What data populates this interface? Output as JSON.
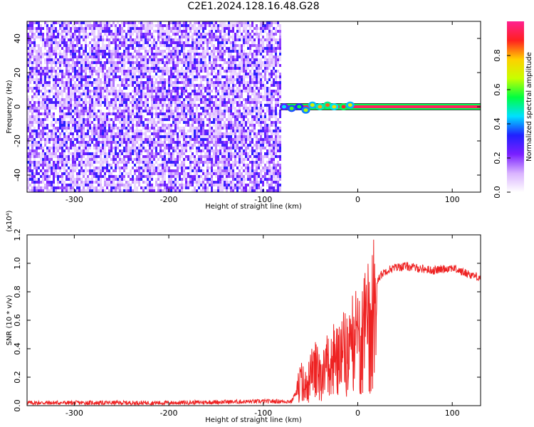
{
  "title": "C2E1.2024.128.16.48.G28",
  "chart_data": [
    {
      "type": "heatmap",
      "title": "",
      "xlabel": "Height of straight line (km)",
      "ylabel": "Frequency (Hz)",
      "xlim": [
        -350,
        130
      ],
      "ylim": [
        -50,
        50
      ],
      "x_ticks": [
        -300,
        -200,
        -100,
        0,
        100
      ],
      "x_tick_labels": [
        "-300",
        "-200",
        "-100",
        "0",
        "100"
      ],
      "y_ticks": [
        -40,
        -20,
        0,
        20,
        40
      ],
      "y_tick_labels": [
        "-40",
        "-20",
        "0",
        "20",
        "40"
      ],
      "noise_region_x": [
        -350,
        -82
      ],
      "signal_line": {
        "frequency_hz": 0,
        "x_start": -82,
        "x_end": 130,
        "normalized_amplitude": 0.95
      },
      "signal_onset_points": [
        {
          "x": -78,
          "y": 0,
          "amplitude": 0.45
        },
        {
          "x": -70,
          "y": -1,
          "amplitude": 0.6
        },
        {
          "x": -62,
          "y": 0,
          "amplitude": 0.55
        },
        {
          "x": -55,
          "y": -2,
          "amplitude": 0.65
        },
        {
          "x": -48,
          "y": 1,
          "amplitude": 0.7
        },
        {
          "x": -40,
          "y": 0,
          "amplitude": 0.8
        },
        {
          "x": -32,
          "y": 1,
          "amplitude": 0.85
        },
        {
          "x": -25,
          "y": 0,
          "amplitude": 0.75
        },
        {
          "x": -15,
          "y": 0,
          "amplitude": 0.9
        },
        {
          "x": -8,
          "y": 1,
          "amplitude": 0.7
        }
      ],
      "colorbar": {
        "label": "Normalized spectral amplitude",
        "range": [
          0.0,
          1.0
        ],
        "ticks": [
          0.0,
          0.2,
          0.4,
          0.6,
          0.8
        ],
        "tick_labels": [
          "0.0",
          "0.2",
          "0.4",
          "0.6",
          "0.8"
        ],
        "colors": [
          "#ffffff",
          "#d9b3ff",
          "#7a1fff",
          "#2020ff",
          "#00e0ff",
          "#00ff40",
          "#c8ff00",
          "#ffd000",
          "#ff2020",
          "#ff2090"
        ]
      }
    },
    {
      "type": "line",
      "title": "",
      "xlabel": "Height of straight line (km)",
      "ylabel": "SNR (10 * v/v)",
      "y_scale_label": "(x10⁴)",
      "xlim": [
        -350,
        130
      ],
      "ylim": [
        0,
        1.2
      ],
      "x_ticks": [
        -300,
        -200,
        -100,
        0,
        100
      ],
      "x_tick_labels": [
        "-300",
        "-200",
        "-100",
        "0",
        "100"
      ],
      "y_ticks": [
        0.0,
        0.2,
        0.4,
        0.6,
        0.8,
        1.0,
        1.2
      ],
      "y_tick_labels": [
        "0.0",
        "0.2",
        "0.4",
        "0.6",
        "0.8",
        "1.0",
        "1.2"
      ],
      "series_color": "#ee2222",
      "series": [
        {
          "x": [
            -350,
            -300,
            -250,
            -200,
            -150,
            -100,
            -70,
            -65,
            -60,
            -55,
            -50,
            -45,
            -40,
            -35,
            -30,
            -25,
            -20,
            -15,
            -10,
            -5,
            0,
            5,
            10,
            15,
            20,
            25,
            30,
            40,
            50,
            60,
            70,
            80,
            90,
            100,
            110,
            120,
            130
          ],
          "y": [
            0.02,
            0.02,
            0.02,
            0.02,
            0.025,
            0.03,
            0.03,
            0.1,
            0.2,
            0.15,
            0.25,
            0.3,
            0.28,
            0.35,
            0.33,
            0.4,
            0.38,
            0.45,
            0.5,
            0.55,
            0.6,
            0.62,
            0.7,
            0.82,
            0.88,
            0.92,
            0.95,
            0.97,
            0.98,
            0.97,
            0.96,
            0.95,
            0.96,
            0.97,
            0.94,
            0.92,
            0.9
          ]
        }
      ]
    }
  ]
}
